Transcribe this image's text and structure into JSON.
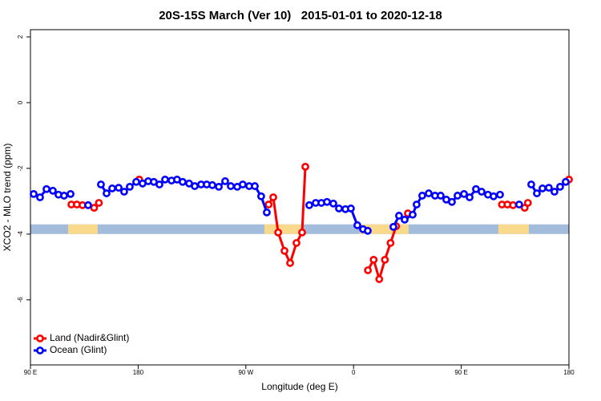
{
  "chart_data": {
    "type": "line",
    "title": "20S-15S March (Ver 10)   2015-01-01 to 2020-12-18",
    "x_label": "Longitude (deg E)",
    "y_label": "XCO2 - MLO trend (ppm)",
    "xlim": [
      90,
      540
    ],
    "xticks": [
      {
        "value": 90,
        "label": "90 E"
      },
      {
        "value": 180,
        "label": "180"
      },
      {
        "value": 270,
        "label": "90 W"
      },
      {
        "value": 360,
        "label": "0"
      },
      {
        "value": 450,
        "label": "90 E"
      },
      {
        "value": 540,
        "label": "180"
      }
    ],
    "ylim": [
      -7.98,
      2.22
    ],
    "yticks": [
      -6,
      -4,
      -2,
      0,
      2
    ],
    "legend": "bottom-left",
    "surface_band": {
      "value": -3.85,
      "color": "#a3bcdc",
      "land_color": "#f9d98c",
      "land_ranges": [
        [
          121.5,
          146.2
        ],
        [
          285.5,
          317
        ],
        [
          365,
          406
        ],
        [
          481,
          506.5
        ]
      ]
    },
    "series": [
      {
        "name": "Land (Nadir&Glint)",
        "color": "#ff0000",
        "x": [
          124.2,
          128.8,
          133.5,
          null,
          143.2,
          147.2,
          null,
          180.9,
          null,
          289,
          292.9,
          297,
          302.3,
          307,
          312.3,
          317,
          319.7,
          null,
          372,
          376.8,
          381.5,
          386.2,
          390.9,
          395.6,
          null,
          405.4,
          null,
          484,
          488.6,
          493.3,
          null,
          503,
          505.7,
          null,
          540
        ],
        "values": [
          -3.1,
          -3.1,
          -3.12,
          null,
          -3.2,
          -3.05,
          null,
          -2.34,
          null,
          -3.1,
          -2.88,
          -3.95,
          -4.51,
          -4.88,
          -4.27,
          -3.95,
          -1.95,
          null,
          -5.1,
          -4.78,
          -5.37,
          -4.78,
          -4.27,
          -3.76,
          null,
          -3.37,
          null,
          -3.1,
          -3.1,
          -3.12,
          null,
          -3.2,
          -3.05,
          null,
          -2.34
        ]
      },
      {
        "name": "Ocean (Glint)",
        "color": "#0000ff",
        "x": [
          92.7,
          98,
          103.4,
          108.7,
          113.4,
          118.1,
          123.5,
          null,
          138.2,
          null,
          148.9,
          153.6,
          158.3,
          163.7,
          168.3,
          173,
          178.4,
          183.7,
          188.4,
          193.1,
          197.8,
          202.5,
          207.9,
          212.5,
          217.2,
          222.6,
          227.3,
          232.6,
          237.3,
          242,
          247.4,
          252.7,
          257.4,
          262.8,
          267.4,
          272.8,
          277.5,
          282.8,
          287.5,
          null,
          323,
          328.4,
          333.1,
          337.8,
          343.1,
          347.8,
          353.2,
          357.8,
          363.2,
          367.9,
          371.9,
          null,
          393.3,
          398,
          402.7,
          409.4,
          412.7,
          417.4,
          422.8,
          428.1,
          432.8,
          437.5,
          442.2,
          446.9,
          452.3,
          457,
          462.3,
          467,
          472.3,
          477,
          482.4,
          null,
          498.4,
          null,
          508.5,
          513.2,
          517.9,
          523.2,
          527.9,
          532.6,
          537.3
        ],
        "values": [
          -2.78,
          -2.88,
          -2.63,
          -2.68,
          -2.8,
          -2.83,
          -2.78,
          null,
          -3.12,
          null,
          -2.49,
          -2.76,
          -2.61,
          -2.59,
          -2.71,
          -2.56,
          -2.41,
          -2.46,
          -2.39,
          -2.41,
          -2.49,
          -2.34,
          -2.37,
          -2.34,
          -2.41,
          -2.46,
          -2.54,
          -2.49,
          -2.49,
          -2.51,
          -2.56,
          -2.39,
          -2.54,
          -2.56,
          -2.49,
          -2.54,
          -2.54,
          -2.85,
          -3.34,
          null,
          -3.12,
          -3.05,
          -3.05,
          -3.02,
          -3.07,
          -3.22,
          -3.24,
          -3.22,
          -3.73,
          -3.85,
          -3.9,
          null,
          -3.78,
          -3.44,
          -3.56,
          -3.41,
          -3.1,
          -2.83,
          -2.76,
          -2.83,
          -2.83,
          -2.95,
          -3.02,
          -2.83,
          -2.78,
          -2.88,
          -2.63,
          -2.71,
          -2.8,
          -2.85,
          -2.8,
          null,
          -3.1,
          null,
          -2.49,
          -2.76,
          -2.61,
          -2.59,
          -2.71,
          -2.56,
          -2.41
        ]
      }
    ]
  }
}
